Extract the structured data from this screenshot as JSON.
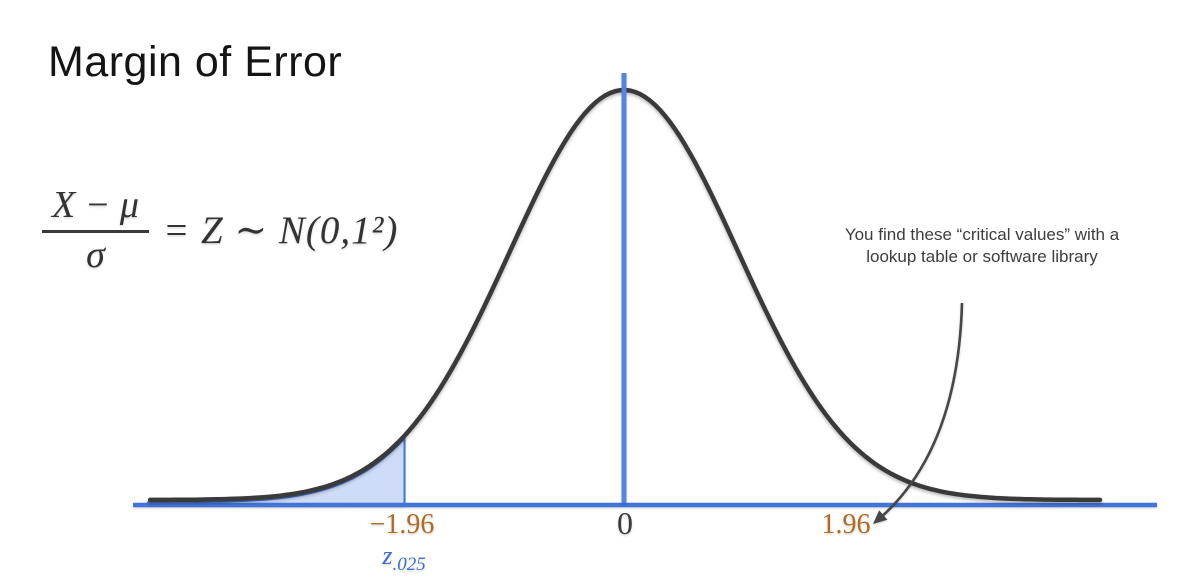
{
  "slide": {
    "title": "Margin of Error"
  },
  "formula": {
    "numerator": "X − μ",
    "denominator": "σ",
    "rhs": "= Z ∼ N(0,1²)"
  },
  "annotation": {
    "line1": "You find these “critical values” with a",
    "line2": "lookup table or software library"
  },
  "chart_data": {
    "type": "area",
    "distribution": "standard normal curve",
    "mean": 0,
    "sd": 1,
    "tail_area": 0.025,
    "shaded_region": {
      "from": -4.25,
      "to": -1.96,
      "side": "left tail"
    },
    "x_ticks": [
      {
        "value": -1.96,
        "label": "−1.96",
        "color": "#b26a24"
      },
      {
        "value": 0,
        "label": "0",
        "color": "#3b3b3b"
      },
      {
        "value": 1.96,
        "label": "1.96",
        "color": "#b26a24"
      }
    ],
    "critical_value_label": {
      "base": "z",
      "subscript": ".025",
      "color": "#3a6fd1"
    },
    "x_range": [
      -4.38,
      4.76
    ],
    "curve_x_range": [
      -4.23,
      4.25
    ],
    "colors": {
      "curve": "#3a3a3a",
      "axis": "#4374d9",
      "center_line": "#5585e0",
      "shade_fill": "#cfdcf7",
      "shade_stroke": "#4374d9",
      "arrow": "#474747"
    },
    "legend": null,
    "grid": false
  }
}
